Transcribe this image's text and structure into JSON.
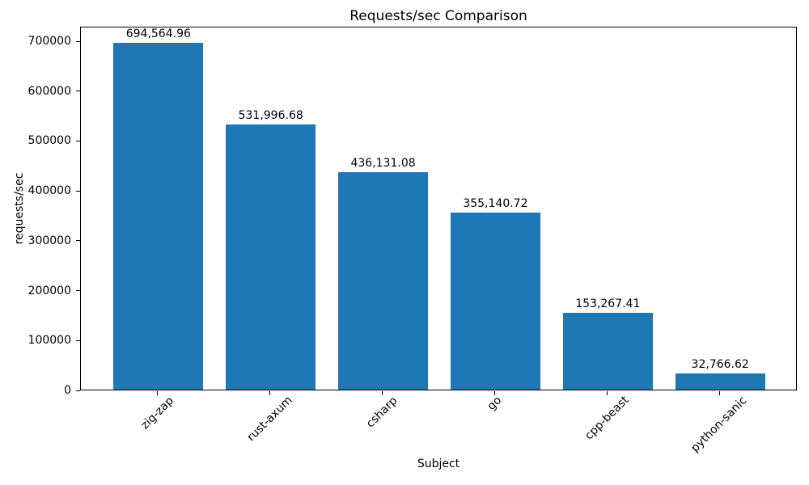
{
  "chart_data": {
    "type": "bar",
    "title": "Requests/sec Comparison",
    "xlabel": "Subject",
    "ylabel": "requests/sec",
    "categories": [
      "zig-zap",
      "rust-axum",
      "csharp",
      "go",
      "cpp-beast",
      "python-sanic"
    ],
    "values": [
      694564.96,
      531996.68,
      436131.08,
      355140.72,
      153267.41,
      32766.62
    ],
    "value_labels": [
      "694,564.96",
      "531,996.68",
      "436,131.08",
      "355,140.72",
      "153,267.41",
      "32,766.62"
    ],
    "yticks": [
      0,
      100000,
      200000,
      300000,
      400000,
      500000,
      600000,
      700000
    ],
    "ytick_labels": [
      "0",
      "100000",
      "200000",
      "300000",
      "400000",
      "500000",
      "600000",
      "700000"
    ],
    "ylim": [
      0,
      729293
    ],
    "bar_color": "#1f77b4",
    "text_color": "#000000",
    "background_color": "#ffffff",
    "grid": false,
    "legend": null
  }
}
